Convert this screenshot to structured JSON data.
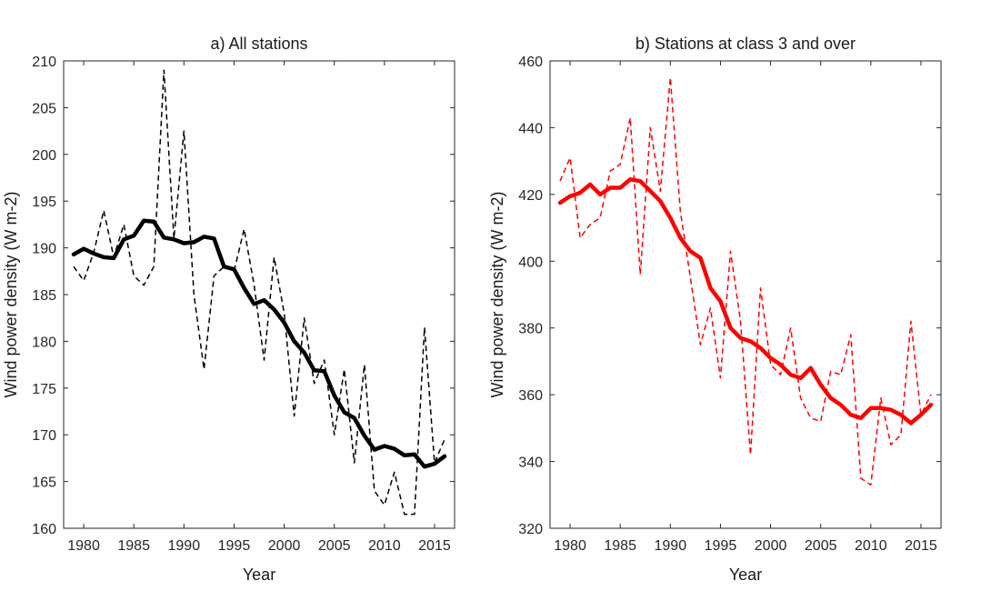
{
  "chart_data": [
    {
      "type": "line",
      "title": "a) All stations",
      "xlabel": "Year",
      "ylabel": "Wind power density (W m-2)",
      "xlim": [
        1978,
        2017
      ],
      "ylim": [
        160,
        210
      ],
      "xticks": [
        1980,
        1985,
        1990,
        1995,
        2000,
        2005,
        2010,
        2015
      ],
      "yticks": [
        160,
        165,
        170,
        175,
        180,
        185,
        190,
        195,
        200,
        205,
        210
      ],
      "grid": false,
      "series": [
        {
          "style": "dashed",
          "color": "#000000",
          "x": [
            1979,
            1980,
            1981,
            1982,
            1983,
            1984,
            1985,
            1986,
            1987,
            1988,
            1989,
            1990,
            1991,
            1992,
            1993,
            1994,
            1995,
            1996,
            1997,
            1998,
            1999,
            2000,
            2001,
            2002,
            2003,
            2004,
            2005,
            2006,
            2007,
            2008,
            2009,
            2010,
            2011,
            2012,
            2013,
            2014,
            2015,
            2016
          ],
          "values": [
            188,
            186.5,
            189.5,
            194,
            189,
            192.5,
            187,
            186,
            188,
            209,
            191,
            202.5,
            185,
            177,
            187,
            188,
            187.5,
            192,
            186,
            178,
            189,
            183,
            172,
            182.5,
            175.5,
            178,
            170,
            177,
            167,
            177.5,
            164,
            162.5,
            166,
            161.5,
            161.5,
            181.5,
            167,
            169.5
          ]
        },
        {
          "style": "solid-thick",
          "color": "#000000",
          "x": [
            1979,
            1980,
            1981,
            1982,
            1983,
            1984,
            1985,
            1986,
            1987,
            1988,
            1989,
            1990,
            1991,
            1992,
            1993,
            1994,
            1995,
            1996,
            1997,
            1998,
            1999,
            2000,
            2001,
            2002,
            2003,
            2004,
            2005,
            2006,
            2007,
            2008,
            2009,
            2010,
            2011,
            2012,
            2013,
            2014,
            2015,
            2016
          ],
          "values": [
            189.3,
            189.9,
            189.4,
            189,
            188.9,
            190.9,
            191.3,
            192.9,
            192.8,
            191.1,
            190.9,
            190.5,
            190.6,
            191.2,
            191,
            188,
            187.7,
            185.7,
            184,
            184.4,
            183.4,
            182,
            180,
            178.8,
            176.9,
            176.8,
            174.2,
            172.4,
            171.8,
            169.9,
            168.4,
            168.8,
            168.5,
            167.8,
            167.9,
            166.6,
            166.9,
            167.7
          ]
        }
      ]
    },
    {
      "type": "line",
      "title": "b) Stations at class 3 and over",
      "xlabel": "Year",
      "ylabel": "Wind power density (W m-2)",
      "xlim": [
        1978,
        2017
      ],
      "ylim": [
        320,
        460
      ],
      "xticks": [
        1980,
        1985,
        1990,
        1995,
        2000,
        2005,
        2010,
        2015
      ],
      "yticks": [
        320,
        340,
        360,
        380,
        400,
        420,
        440,
        460
      ],
      "grid": false,
      "series": [
        {
          "style": "dashed",
          "color": "#ff0000",
          "x": [
            1979,
            1980,
            1981,
            1982,
            1983,
            1984,
            1985,
            1986,
            1987,
            1988,
            1989,
            1990,
            1991,
            1992,
            1993,
            1994,
            1995,
            1996,
            1997,
            1998,
            1999,
            2000,
            2001,
            2002,
            2003,
            2004,
            2005,
            2006,
            2007,
            2008,
            2009,
            2010,
            2011,
            2012,
            2013,
            2014,
            2015,
            2016
          ],
          "values": [
            424,
            431,
            407,
            411,
            413,
            427,
            429,
            443,
            396,
            440,
            421,
            455,
            415,
            395,
            375,
            386,
            365,
            403,
            382,
            342,
            392,
            369,
            366,
            380,
            359,
            353,
            352,
            367,
            366,
            378,
            335,
            333,
            359,
            345,
            348,
            382,
            354,
            360
          ]
        },
        {
          "style": "solid-thick",
          "color": "#ff0000",
          "x": [
            1979,
            1980,
            1981,
            1982,
            1983,
            1984,
            1985,
            1986,
            1987,
            1988,
            1989,
            1990,
            1991,
            1992,
            1993,
            1994,
            1995,
            1996,
            1997,
            1998,
            1999,
            2000,
            2001,
            2002,
            2003,
            2004,
            2005,
            2006,
            2007,
            2008,
            2009,
            2010,
            2011,
            2012,
            2013,
            2014,
            2015,
            2016
          ],
          "values": [
            417.5,
            419.5,
            420.5,
            423,
            420,
            422,
            422,
            424.5,
            424,
            421,
            418,
            413,
            407,
            403,
            401,
            392,
            388,
            380,
            377,
            376,
            374,
            371,
            369,
            366,
            365,
            368,
            363,
            359,
            357,
            354,
            353,
            356,
            356,
            355.5,
            354,
            351.5,
            354,
            357
          ]
        }
      ]
    }
  ]
}
